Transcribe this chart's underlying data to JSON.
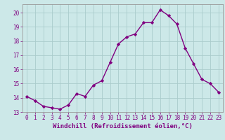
{
  "x": [
    0,
    1,
    2,
    3,
    4,
    5,
    6,
    7,
    8,
    9,
    10,
    11,
    12,
    13,
    14,
    15,
    16,
    17,
    18,
    19,
    20,
    21,
    22,
    23
  ],
  "y": [
    14.1,
    13.8,
    13.4,
    13.3,
    13.2,
    13.5,
    14.3,
    14.1,
    14.9,
    15.2,
    16.5,
    17.8,
    18.3,
    18.5,
    19.3,
    19.3,
    20.2,
    19.8,
    19.2,
    17.5,
    16.4,
    15.3,
    15.0,
    14.4
  ],
  "line_color": "#800080",
  "marker": "D",
  "marker_size": 2.2,
  "bg_color": "#cce8e8",
  "grid_color": "#aacccc",
  "xlabel": "Windchill (Refroidissement éolien,°C)",
  "ylabel": "",
  "ylim": [
    13,
    20.6
  ],
  "xlim": [
    -0.5,
    23.5
  ],
  "yticks": [
    13,
    14,
    15,
    16,
    17,
    18,
    19,
    20
  ],
  "xticks": [
    0,
    1,
    2,
    3,
    4,
    5,
    6,
    7,
    8,
    9,
    10,
    11,
    12,
    13,
    14,
    15,
    16,
    17,
    18,
    19,
    20,
    21,
    22,
    23
  ],
  "tick_color": "#800080",
  "tick_labelsize": 5.5,
  "xlabel_fontsize": 6.5,
  "line_width": 1.0
}
